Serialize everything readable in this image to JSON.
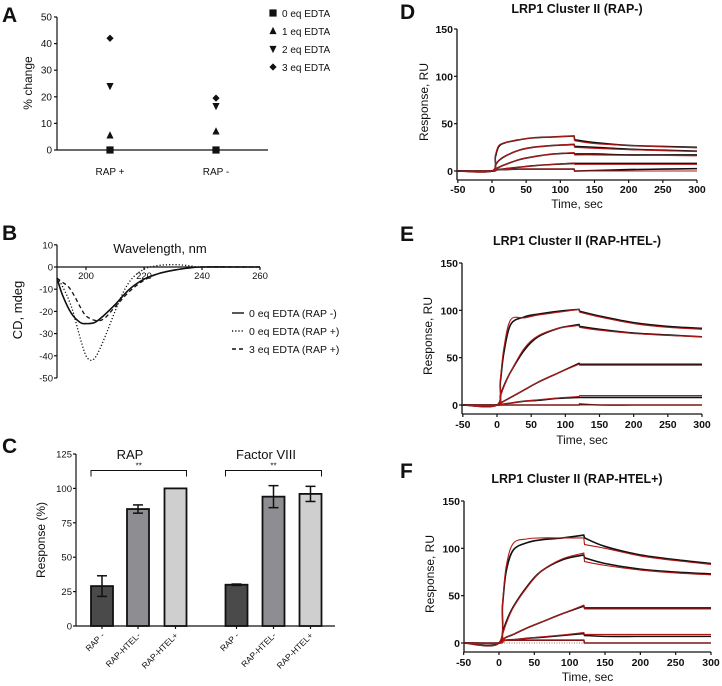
{
  "panel_letters": [
    "A",
    "B",
    "C",
    "D",
    "E",
    "F"
  ],
  "chart_data": [
    {
      "id": "A",
      "type": "scatter",
      "ylabel": "% change",
      "ylim": [
        0,
        50
      ],
      "yticks": [
        "0",
        "10",
        "20",
        "30",
        "40",
        "50"
      ],
      "categories": [
        "RAP +",
        "RAP -"
      ],
      "legend_position": "top-right",
      "series": [
        {
          "name": "0 eq EDTA",
          "marker": "square",
          "values": [
            0,
            0
          ]
        },
        {
          "name": "1 eq EDTA",
          "marker": "triangle-up",
          "values": [
            5.5,
            7
          ]
        },
        {
          "name": "2 eq EDTA",
          "marker": "triangle-down",
          "values": [
            24,
            16.5
          ]
        },
        {
          "name": "3 eq EDTA",
          "marker": "diamond",
          "values": [
            42,
            19.5
          ]
        }
      ]
    },
    {
      "id": "B",
      "type": "line",
      "xlabel": "Wavelength, nm",
      "ylabel": "CD, mdeg",
      "xlim": [
        190,
        260
      ],
      "ylim": [
        -50,
        10
      ],
      "xticks": [
        "200",
        "220",
        "240",
        "260"
      ],
      "yticks": [
        "10",
        "0",
        "-10",
        "-20",
        "-30",
        "-40",
        "-50"
      ],
      "legend_position": "right",
      "series": [
        {
          "name": "0 eq EDTA (RAP -)",
          "style": "solid",
          "x": [
            190,
            192,
            195,
            198,
            200,
            203,
            206,
            210,
            215,
            220,
            225,
            230,
            235,
            240,
            250,
            260
          ],
          "y": [
            -5,
            -13,
            -21,
            -25,
            -25.5,
            -25,
            -22,
            -17,
            -10,
            -5.5,
            -3,
            -1.5,
            -0.5,
            0,
            0,
            0
          ]
        },
        {
          "name": "0 eq EDTA (RAP +)",
          "style": "dotted",
          "x": [
            190,
            192,
            195,
            198,
            200,
            202,
            204,
            207,
            210,
            213,
            216,
            220,
            224,
            228,
            232,
            236,
            240,
            260
          ],
          "y": [
            -5,
            -9,
            -18,
            -32,
            -40,
            -42,
            -39,
            -30,
            -20,
            -11,
            -5,
            -1,
            0.5,
            1,
            1,
            0.5,
            0,
            0
          ]
        },
        {
          "name": "3 eq EDTA (RAP +)",
          "style": "dashed",
          "x": [
            190,
            192,
            194,
            196,
            198,
            200,
            203,
            206,
            210,
            215,
            220,
            225,
            230,
            235,
            240,
            260
          ],
          "y": [
            -5,
            -7,
            -9,
            -13,
            -18,
            -22,
            -24,
            -23.5,
            -18,
            -11,
            -6,
            -3,
            -1.5,
            -0.5,
            0,
            0
          ]
        }
      ]
    },
    {
      "id": "C",
      "type": "bar",
      "ylabel": "Response (%)",
      "ylim": [
        0,
        125
      ],
      "yticks": [
        "0",
        "25",
        "50",
        "75",
        "100",
        "125"
      ],
      "groups": [
        {
          "title": "RAP",
          "significance": "**",
          "categories": [
            "RAP -",
            "RAP-HTEL-",
            "RAP-HTEL+"
          ],
          "values": [
            29,
            85,
            100
          ],
          "errors": [
            7.5,
            3,
            0
          ]
        },
        {
          "title": "Factor VIII",
          "significance": "**",
          "categories": [
            "RAP -",
            "RAP-HTEL-",
            "RAP-HTEL+"
          ],
          "values": [
            30,
            94,
            96
          ],
          "errors": [
            0.5,
            8,
            5.5
          ]
        }
      ],
      "colors": [
        "#4a4a4a",
        "#8e8e92",
        "#cfcfcf"
      ]
    },
    {
      "id": "D",
      "type": "line",
      "title": "LRP1 Cluster II (RAP-)",
      "xlabel": "Time, sec",
      "ylabel": "Response, RU",
      "xlim": [
        -50,
        300
      ],
      "ylim": [
        0,
        150
      ],
      "xticks": [
        "-50",
        "0",
        "50",
        "100",
        "150",
        "200",
        "250",
        "300"
      ],
      "yticks": [
        "0",
        "50",
        "100",
        "150"
      ],
      "x": [
        -50,
        0,
        5,
        10,
        20,
        40,
        60,
        90,
        120,
        121,
        150,
        200,
        250,
        300
      ],
      "series": [
        {
          "observed": [
            0,
            0,
            15,
            26,
            30,
            33,
            35,
            36,
            37,
            33,
            30,
            27,
            26,
            25
          ],
          "fit": [
            0,
            0,
            17,
            27,
            30,
            33,
            35,
            36,
            37,
            32,
            29,
            27,
            25.5,
            24.5
          ]
        },
        {
          "observed": [
            0,
            0,
            6,
            11,
            16,
            22,
            25,
            27,
            28,
            26,
            25,
            23,
            22,
            21
          ],
          "fit": [
            0,
            0,
            6,
            11,
            16,
            22,
            25,
            27,
            28.5,
            25,
            24,
            22.5,
            21.5,
            20.5
          ]
        },
        {
          "observed": [
            0,
            0,
            2,
            4,
            7,
            12,
            15,
            18,
            19,
            18,
            18,
            17,
            17,
            17
          ],
          "fit": [
            0,
            0,
            2,
            4,
            7,
            12,
            15,
            18,
            19.5,
            17,
            17,
            16.5,
            16.5,
            16
          ]
        },
        {
          "observed": [
            0,
            0,
            1,
            1.5,
            2.5,
            4,
            5.5,
            7,
            8,
            8,
            8,
            8,
            8,
            8
          ],
          "fit": [
            0,
            0,
            1,
            1.5,
            2.5,
            4,
            5.5,
            7,
            8.5,
            7,
            7,
            7,
            7,
            7
          ]
        },
        {
          "observed": [
            0,
            0,
            1,
            1.5,
            1.5,
            2,
            2,
            2,
            2,
            0,
            0.5,
            1.5,
            2,
            2.5
          ],
          "fit": [
            0,
            0,
            1,
            1.5,
            1.5,
            2,
            2,
            2,
            2,
            0,
            0,
            0,
            0,
            0
          ]
        }
      ],
      "colors": {
        "observed": "#111111",
        "fit": "#b01818"
      }
    },
    {
      "id": "E",
      "type": "line",
      "title": "LRP1 Cluster II (RAP-HTEL-)",
      "xlabel": "Time, sec",
      "ylabel": "Response, RU",
      "xlim": [
        -50,
        300
      ],
      "ylim": [
        0,
        150
      ],
      "xticks": [
        "-50",
        "0",
        "50",
        "100",
        "150",
        "200",
        "250",
        "300"
      ],
      "yticks": [
        "0",
        "50",
        "100",
        "150"
      ],
      "x": [
        -50,
        0,
        5,
        10,
        20,
        40,
        60,
        90,
        120,
        121,
        150,
        200,
        250,
        300
      ],
      "series": [
        {
          "observed": [
            0,
            0,
            25,
            55,
            85,
            93,
            96,
            99,
            101,
            99,
            94,
            87,
            83,
            81
          ],
          "fit": [
            0,
            0,
            28,
            60,
            90,
            92,
            95,
            98,
            101,
            98,
            93,
            86,
            82,
            80
          ]
        },
        {
          "observed": [
            0,
            0,
            10,
            20,
            35,
            58,
            72,
            81,
            85,
            83,
            80,
            76,
            74,
            72
          ],
          "fit": [
            0,
            0,
            9,
            19,
            35,
            60,
            73,
            81,
            84,
            82,
            79,
            75.5,
            73.5,
            72
          ]
        },
        {
          "observed": [
            0,
            0,
            2,
            4,
            8,
            16,
            24,
            34,
            44,
            43,
            43,
            43,
            43,
            43
          ],
          "fit": [
            0,
            0,
            2,
            4,
            8,
            16,
            24,
            34,
            43,
            42,
            42,
            42,
            42,
            42
          ]
        },
        {
          "observed": [
            0,
            0,
            0.5,
            1,
            2,
            4,
            5,
            7,
            8,
            8,
            8,
            8,
            8,
            8
          ],
          "fit": [
            0,
            0,
            0.5,
            1,
            2,
            4,
            5.5,
            7.5,
            9,
            10,
            10,
            10,
            10,
            10
          ]
        },
        {
          "observed": [
            0,
            0,
            0,
            0,
            0,
            0,
            0,
            0,
            0,
            1,
            0,
            0,
            0,
            0
          ],
          "fit": [
            0,
            0,
            0,
            0,
            0,
            0,
            0,
            0,
            0,
            0,
            0,
            0,
            0,
            0
          ]
        }
      ],
      "colors": {
        "observed": "#111111",
        "fit": "#b01818"
      }
    },
    {
      "id": "F",
      "type": "line",
      "title": "LRP1 Cluster II (RAP-HTEL+)",
      "xlabel": "Time, sec",
      "ylabel": "Response, RU",
      "xlim": [
        -50,
        300
      ],
      "ylim": [
        0,
        150
      ],
      "xticks": [
        "-50",
        "0",
        "50",
        "100",
        "150",
        "200",
        "250",
        "300"
      ],
      "yticks": [
        "0",
        "50",
        "100",
        "150"
      ],
      "x": [
        -50,
        0,
        5,
        10,
        20,
        40,
        60,
        90,
        120,
        121,
        150,
        200,
        250,
        300
      ],
      "series": [
        {
          "observed": [
            0,
            0,
            40,
            75,
            98,
            106,
            109,
            111,
            114,
            111,
            102,
            93,
            88,
            84
          ],
          "fit": [
            0,
            0,
            42,
            80,
            105,
            110,
            111,
            111,
            111,
            104,
            100,
            92,
            87,
            83
          ]
        },
        {
          "observed": [
            0,
            0,
            10,
            22,
            38,
            60,
            76,
            88,
            93,
            90,
            84,
            78,
            75,
            73
          ],
          "fit": [
            0,
            0,
            9,
            20,
            37,
            59,
            76,
            89,
            95,
            86,
            82,
            77,
            74,
            72
          ]
        },
        {
          "observed": [
            0,
            0,
            3,
            6,
            9,
            16,
            22,
            31,
            39,
            37,
            37,
            37,
            37,
            37
          ],
          "fit": [
            0,
            0,
            3,
            6,
            9,
            16,
            22,
            31,
            40,
            36,
            36,
            36,
            36,
            36
          ]
        },
        {
          "observed": [
            0,
            0,
            2,
            3,
            3.5,
            5,
            6,
            8,
            10,
            8,
            7,
            7,
            7,
            7
          ],
          "fit": [
            0,
            0,
            2,
            3,
            3.5,
            5,
            6.5,
            8.5,
            11,
            9,
            9,
            9,
            9,
            9
          ]
        },
        {
          "observed": [
            0,
            0,
            3,
            3,
            3,
            3,
            3,
            3,
            3,
            0,
            0,
            0,
            0,
            0
          ],
          "fit": [
            0,
            0,
            3,
            3,
            3,
            3,
            3,
            3,
            3,
            0,
            0,
            0,
            0,
            0
          ]
        }
      ],
      "colors": {
        "observed": "#111111",
        "fit": "#b01818"
      }
    }
  ]
}
